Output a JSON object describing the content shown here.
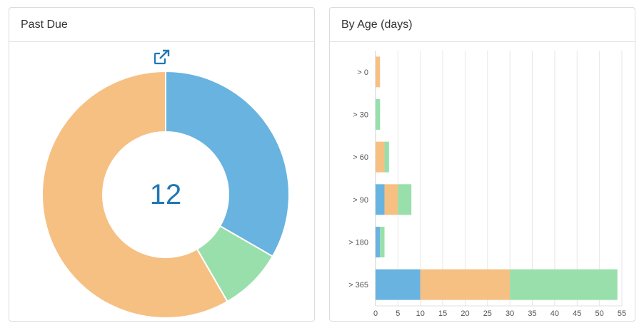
{
  "past_due": {
    "title": "Past Due",
    "external_link_icon": "external-link-icon",
    "chart_data": {
      "type": "pie",
      "variant": "donut",
      "slices": [
        {
          "value": 4,
          "color": "#68b3df"
        },
        {
          "value": 1,
          "color": "#98dfab"
        },
        {
          "value": 7,
          "color": "#f6c083"
        }
      ],
      "center_value": "12"
    }
  },
  "by_age": {
    "title": "By Age (days)",
    "chart_data": {
      "type": "bar",
      "orientation": "horizontal",
      "stacked": true,
      "categories": [
        "> 0",
        "> 30",
        "> 60",
        "> 90",
        "> 180",
        "> 365"
      ],
      "series": [
        {
          "color": "#68b3df",
          "values": [
            0,
            0,
            0,
            2,
            1,
            10
          ]
        },
        {
          "color": "#f6c083",
          "values": [
            1,
            0,
            2,
            3,
            0,
            20
          ]
        },
        {
          "color": "#98dfab",
          "values": [
            0,
            1,
            1,
            3,
            1,
            24
          ]
        }
      ],
      "xlim": [
        0,
        55
      ],
      "xticks": [
        0,
        5,
        10,
        15,
        20,
        25,
        30,
        35,
        40,
        45,
        50,
        55
      ],
      "grid": true
    }
  }
}
